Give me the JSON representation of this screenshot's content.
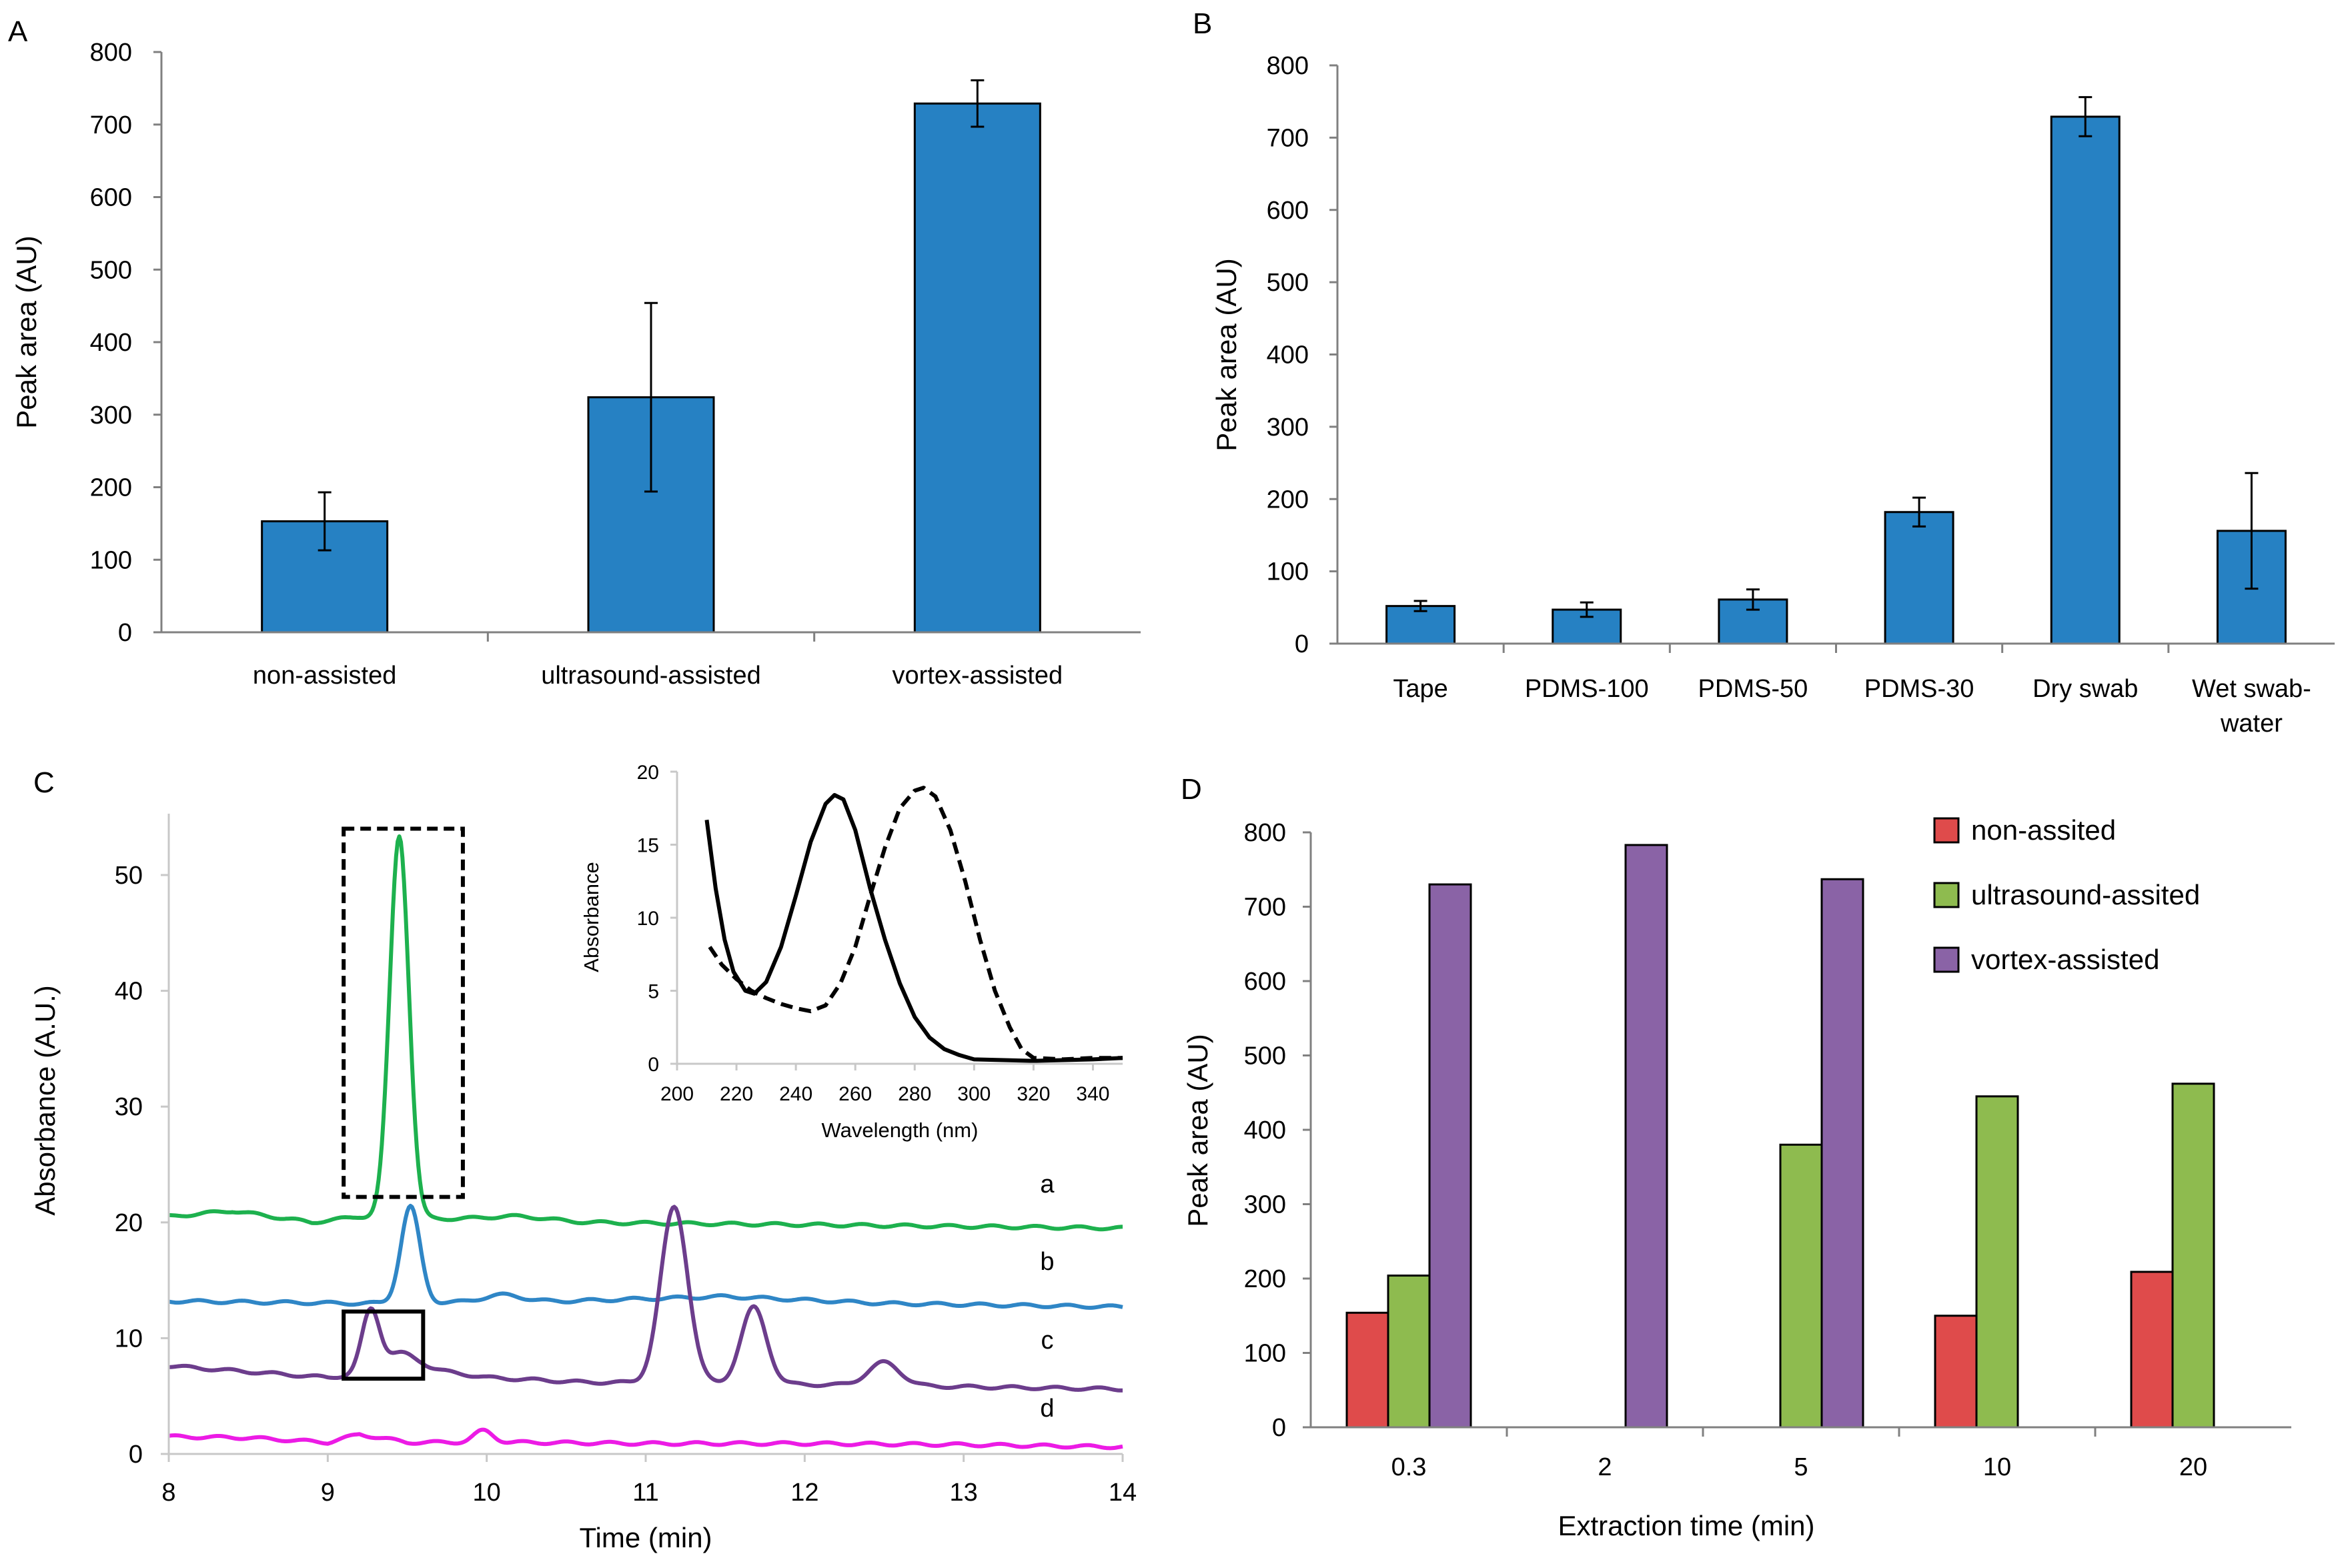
{
  "figure": {
    "colors": {
      "bar_blue": "#2681C3",
      "red": "#DF4B4B",
      "green": "#8EBB4F",
      "purple": "#8A63A6",
      "trace_a": "#1DB14E",
      "trace_b": "#2F86C6",
      "trace_c": "#6C3D8C",
      "trace_d": "#EC1BE5"
    }
  },
  "chart_data": [
    {
      "panel": "A",
      "type": "bar",
      "categories": [
        "non-assisted",
        "ultrasound-assisted",
        "vortex-assisted"
      ],
      "values": [
        153,
        324,
        729
      ],
      "errors": [
        40,
        130,
        32
      ],
      "ylabel": "Peak area (AU)",
      "xlabel": "",
      "ylim": [
        0,
        800
      ],
      "yticks": [
        "0",
        "100",
        "200",
        "300",
        "400",
        "500",
        "600",
        "700",
        "800"
      ]
    },
    {
      "panel": "B",
      "type": "bar",
      "categories": [
        "Tape",
        "PDMS-100",
        "PDMS-50",
        "PDMS-30",
        "Dry swab",
        "Wet swab-water"
      ],
      "category_lines": [
        [
          "Tape"
        ],
        [
          "PDMS-100"
        ],
        [
          "PDMS-50"
        ],
        [
          "PDMS-30"
        ],
        [
          "Dry swab"
        ],
        [
          "Wet swab-",
          "water"
        ]
      ],
      "values": [
        52,
        47,
        61,
        182,
        729,
        156
      ],
      "errors": [
        7,
        10,
        14,
        20,
        27,
        80
      ],
      "ylabel": "Peak area (AU)",
      "xlabel": "",
      "ylim": [
        0,
        800
      ],
      "yticks": [
        "0",
        "100",
        "200",
        "300",
        "400",
        "500",
        "600",
        "700",
        "800"
      ]
    },
    {
      "panel": "C",
      "type": "line",
      "xlabel": "Time (min)",
      "ylabel": "Absorbance (A.U.)",
      "xlim": [
        8,
        14
      ],
      "ylim": [
        0,
        55
      ],
      "xticks": [
        "8",
        "9",
        "10",
        "11",
        "12",
        "13",
        "14"
      ],
      "yticks": [
        "0",
        "10",
        "20",
        "30",
        "40",
        "50"
      ],
      "series": [
        {
          "name": "a",
          "baseline": [
            [
              8,
              20.5
            ],
            [
              8.4,
              21
            ],
            [
              8.9,
              20
            ],
            [
              9.2,
              20.5
            ],
            [
              10.5,
              20
            ],
            [
              12,
              19.8
            ],
            [
              14,
              19.5
            ]
          ],
          "peaks": [
            [
              9.45,
              33,
              0.06
            ],
            [
              10.2,
              0.4,
              0.2
            ]
          ]
        },
        {
          "name": "b",
          "baseline": [
            [
              8,
              13.2
            ],
            [
              9.2,
              13.0
            ],
            [
              10.5,
              13.2
            ],
            [
              11.5,
              13.6
            ],
            [
              12.5,
              13.0
            ],
            [
              14,
              12.7
            ]
          ],
          "peaks": [
            [
              9.52,
              8.3,
              0.06
            ],
            [
              10.1,
              0.6,
              0.12
            ]
          ]
        },
        {
          "name": "c",
          "baseline": [
            [
              8,
              7.6
            ],
            [
              9,
              6.6
            ],
            [
              9.6,
              7.4
            ],
            [
              10.0,
              6.6
            ],
            [
              10.6,
              6.2
            ],
            [
              12,
              6.0
            ],
            [
              14,
              5.6
            ]
          ],
          "peaks": [
            [
              9.27,
              5.3,
              0.055
            ],
            [
              9.45,
              1.5,
              0.1
            ],
            [
              11.18,
              15.2,
              0.085
            ],
            [
              11.68,
              6.6,
              0.08
            ],
            [
              12.5,
              2.0,
              0.1
            ]
          ]
        },
        {
          "name": "d",
          "baseline": [
            [
              8,
              1.5
            ],
            [
              8.5,
              1.4
            ],
            [
              9,
              1.0
            ],
            [
              9.2,
              1.7
            ],
            [
              9.5,
              1.0
            ],
            [
              10.2,
              1.0
            ],
            [
              11,
              0.9
            ],
            [
              12,
              0.9
            ],
            [
              13,
              0.8
            ],
            [
              14,
              0.6
            ]
          ],
          "peaks": [
            [
              9.98,
              1.0,
              0.06
            ]
          ]
        }
      ],
      "boxes": [
        {
          "style": "dashed",
          "x": [
            9.1,
            9.85
          ],
          "y": [
            22.2,
            54.0
          ]
        },
        {
          "style": "solid",
          "x": [
            9.1,
            9.6
          ],
          "y": [
            6.5,
            12.3
          ]
        }
      ],
      "inset": {
        "xlabel": "Wavelength (nm)",
        "ylabel": "Absorbance",
        "xlim": [
          200,
          350
        ],
        "ylim": [
          0,
          20
        ],
        "xticks": [
          "200",
          "220",
          "240",
          "260",
          "280",
          "300",
          "320",
          "340"
        ],
        "yticks": [
          "0",
          "5",
          "10",
          "15",
          "20"
        ],
        "series": [
          {
            "name": "solid",
            "style": "solid",
            "points": [
              [
                210,
                16.7
              ],
              [
                213,
                12
              ],
              [
                216,
                8.5
              ],
              [
                219,
                6.3
              ],
              [
                223,
                5.0
              ],
              [
                226,
                4.8
              ],
              [
                230,
                5.6
              ],
              [
                235,
                8.0
              ],
              [
                240,
                11.5
              ],
              [
                245,
                15.2
              ],
              [
                250,
                17.8
              ],
              [
                253,
                18.4
              ],
              [
                256,
                18.1
              ],
              [
                260,
                16.0
              ],
              [
                265,
                12.0
              ],
              [
                270,
                8.5
              ],
              [
                275,
                5.5
              ],
              [
                280,
                3.2
              ],
              [
                285,
                1.8
              ],
              [
                290,
                1.0
              ],
              [
                295,
                0.6
              ],
              [
                300,
                0.3
              ],
              [
                320,
                0.2
              ],
              [
                340,
                0.3
              ],
              [
                350,
                0.4
              ]
            ]
          },
          {
            "name": "dashed",
            "style": "dashed",
            "points": [
              [
                211,
                8.0
              ],
              [
                215,
                6.8
              ],
              [
                220,
                5.8
              ],
              [
                225,
                5.0
              ],
              [
                230,
                4.5
              ],
              [
                235,
                4.1
              ],
              [
                240,
                3.8
              ],
              [
                245,
                3.6
              ],
              [
                250,
                4.0
              ],
              [
                255,
                5.5
              ],
              [
                260,
                8.0
              ],
              [
                265,
                11.5
              ],
              [
                270,
                14.8
              ],
              [
                275,
                17.5
              ],
              [
                280,
                18.7
              ],
              [
                283,
                18.9
              ],
              [
                287,
                18.3
              ],
              [
                292,
                16.0
              ],
              [
                297,
                12.5
              ],
              [
                302,
                8.5
              ],
              [
                307,
                5.0
              ],
              [
                312,
                2.5
              ],
              [
                316,
                1.0
              ],
              [
                320,
                0.4
              ],
              [
                330,
                0.3
              ],
              [
                340,
                0.4
              ],
              [
                350,
                0.4
              ]
            ]
          }
        ]
      }
    },
    {
      "panel": "D",
      "type": "bar",
      "categories": [
        "0.3",
        "2",
        "5",
        "10",
        "20"
      ],
      "series": [
        {
          "name": "non-assited",
          "values": [
            154,
            null,
            null,
            150,
            209
          ]
        },
        {
          "name": "ultrasound-assited",
          "values": [
            204,
            null,
            380,
            445,
            462
          ]
        },
        {
          "name": "vortex-assisted",
          "values": [
            730,
            783,
            737,
            null,
            null
          ]
        }
      ],
      "xlabel": "Extraction time (min)",
      "ylabel": "Peak area (AU)",
      "ylim": [
        0,
        800
      ],
      "yticks": [
        "0",
        "100",
        "200",
        "300",
        "400",
        "500",
        "600",
        "700",
        "800"
      ],
      "legend": "top-right"
    }
  ]
}
